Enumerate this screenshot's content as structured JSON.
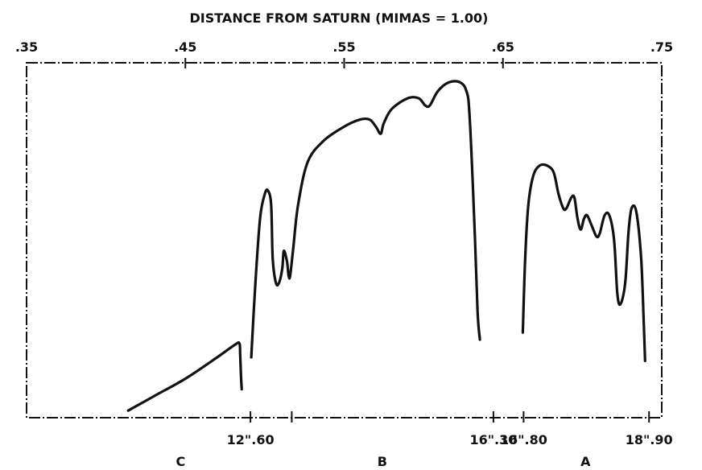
{
  "chart_data": {
    "type": "line",
    "title": "DISTANCE FROM SATURN (MIMAS = 1.00)",
    "top_axis": {
      "range": [
        0.35,
        0.75
      ],
      "ticks": [
        0.35,
        0.45,
        0.55,
        0.65,
        0.75
      ],
      "tick_labels": [
        ".35",
        ".45",
        ".55",
        ".65",
        ".75"
      ]
    },
    "bottom_axis": {
      "range": [
        0.35,
        0.75
      ],
      "ticks": [
        {
          "x": 0.491,
          "label": "12\".60"
        },
        {
          "x": 0.517,
          "label": ""
        },
        {
          "x": 0.644,
          "label": "16\".30"
        },
        {
          "x": 0.663,
          "label": "16\".80"
        },
        {
          "x": 0.742,
          "label": "18\".90"
        }
      ]
    },
    "ring_labels": [
      {
        "label": "C",
        "x": 0.447
      },
      {
        "label": "B",
        "x": 0.574
      },
      {
        "label": "A",
        "x": 0.702
      }
    ],
    "ylim": [
      0,
      1
    ],
    "grid": false,
    "series": [
      {
        "segment": "C ring",
        "points": [
          [
            0.414,
            0.02
          ],
          [
            0.43,
            0.06
          ],
          [
            0.45,
            0.11
          ],
          [
            0.47,
            0.17
          ],
          [
            0.481,
            0.205
          ],
          [
            0.484,
            0.21
          ],
          [
            0.4845,
            0.18
          ],
          [
            0.485,
            0.12
          ],
          [
            0.4855,
            0.08
          ]
        ]
      },
      {
        "segment": "B ring",
        "points": [
          [
            0.4915,
            0.17
          ],
          [
            0.494,
            0.37
          ],
          [
            0.497,
            0.56
          ],
          [
            0.5,
            0.63
          ],
          [
            0.502,
            0.64
          ],
          [
            0.504,
            0.6
          ],
          [
            0.505,
            0.45
          ],
          [
            0.507,
            0.38
          ],
          [
            0.509,
            0.38
          ],
          [
            0.511,
            0.42
          ],
          [
            0.512,
            0.47
          ],
          [
            0.514,
            0.44
          ],
          [
            0.515,
            0.4
          ],
          [
            0.516,
            0.4
          ],
          [
            0.518,
            0.48
          ],
          [
            0.521,
            0.6
          ],
          [
            0.527,
            0.72
          ],
          [
            0.537,
            0.78
          ],
          [
            0.55,
            0.82
          ],
          [
            0.56,
            0.84
          ],
          [
            0.566,
            0.84
          ],
          [
            0.57,
            0.82
          ],
          [
            0.573,
            0.8
          ],
          [
            0.575,
            0.83
          ],
          [
            0.58,
            0.87
          ],
          [
            0.59,
            0.9
          ],
          [
            0.597,
            0.9
          ],
          [
            0.601,
            0.88
          ],
          [
            0.604,
            0.88
          ],
          [
            0.609,
            0.92
          ],
          [
            0.616,
            0.945
          ],
          [
            0.623,
            0.945
          ],
          [
            0.627,
            0.92
          ],
          [
            0.629,
            0.85
          ],
          [
            0.632,
            0.55
          ],
          [
            0.634,
            0.3
          ],
          [
            0.6355,
            0.22
          ]
        ]
      },
      {
        "segment": "A ring",
        "points": [
          [
            0.6625,
            0.24
          ],
          [
            0.664,
            0.45
          ],
          [
            0.666,
            0.6
          ],
          [
            0.669,
            0.68
          ],
          [
            0.673,
            0.71
          ],
          [
            0.678,
            0.71
          ],
          [
            0.682,
            0.69
          ],
          [
            0.685,
            0.63
          ],
          [
            0.688,
            0.59
          ],
          [
            0.69,
            0.59
          ],
          [
            0.693,
            0.62
          ],
          [
            0.695,
            0.62
          ],
          [
            0.697,
            0.56
          ],
          [
            0.699,
            0.53
          ],
          [
            0.701,
            0.56
          ],
          [
            0.703,
            0.57
          ],
          [
            0.706,
            0.54
          ],
          [
            0.709,
            0.51
          ],
          [
            0.711,
            0.52
          ],
          [
            0.714,
            0.57
          ],
          [
            0.717,
            0.57
          ],
          [
            0.72,
            0.5
          ],
          [
            0.722,
            0.35
          ],
          [
            0.724,
            0.32
          ],
          [
            0.727,
            0.38
          ],
          [
            0.729,
            0.52
          ],
          [
            0.731,
            0.59
          ],
          [
            0.734,
            0.58
          ],
          [
            0.737,
            0.45
          ],
          [
            0.7385,
            0.29
          ],
          [
            0.7395,
            0.16
          ]
        ]
      }
    ]
  }
}
